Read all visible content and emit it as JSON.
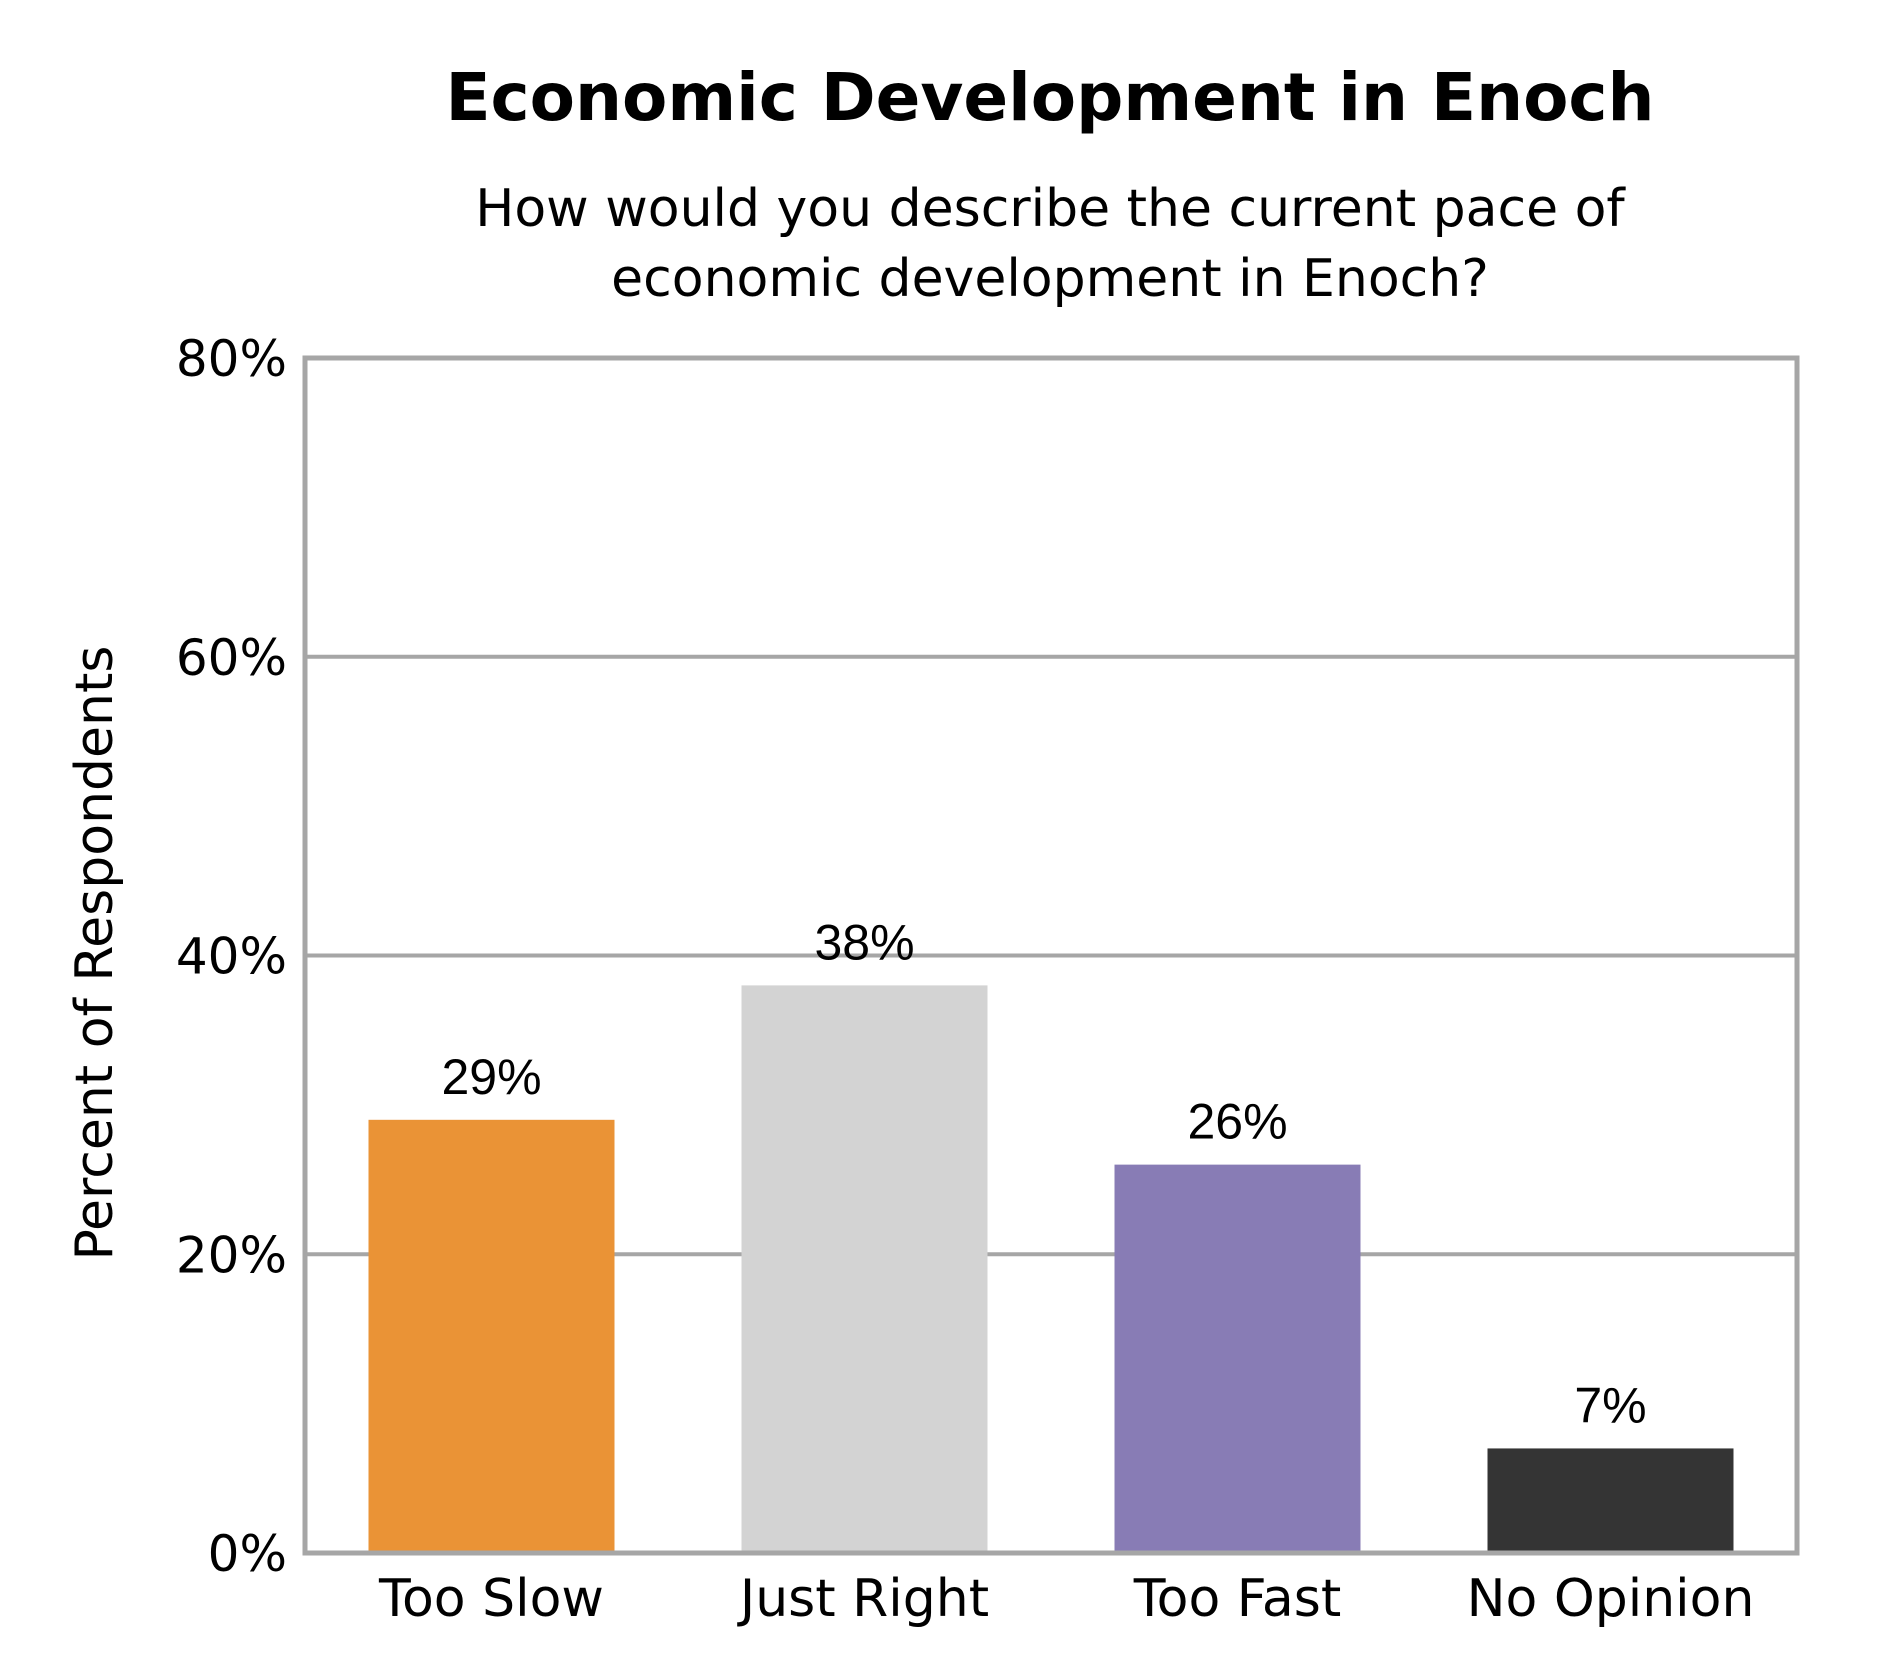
{
  "chart_data": {
    "type": "bar",
    "title": "Economic Development in Enoch",
    "subtitle_lines": [
      "How would you describe the current pace of",
      "economic development in Enoch?"
    ],
    "ylabel": "Percent of Respondents",
    "xlabel": "",
    "ylim": [
      0,
      80
    ],
    "yticks": [
      0,
      20,
      40,
      60,
      80
    ],
    "ytick_labels": [
      "0%",
      "20%",
      "40%",
      "60%",
      "80%"
    ],
    "grid": true,
    "categories": [
      "Too Slow",
      "Just Right",
      "Too Fast",
      "No Opinion"
    ],
    "values": [
      29,
      38,
      26,
      7
    ],
    "value_labels": [
      "29%",
      "38%",
      "26%",
      "7%"
    ],
    "colors": [
      "#ea9336",
      "#d3d3d3",
      "#887cb5",
      "#343434"
    ],
    "frame_color": "#a6a6a6"
  }
}
